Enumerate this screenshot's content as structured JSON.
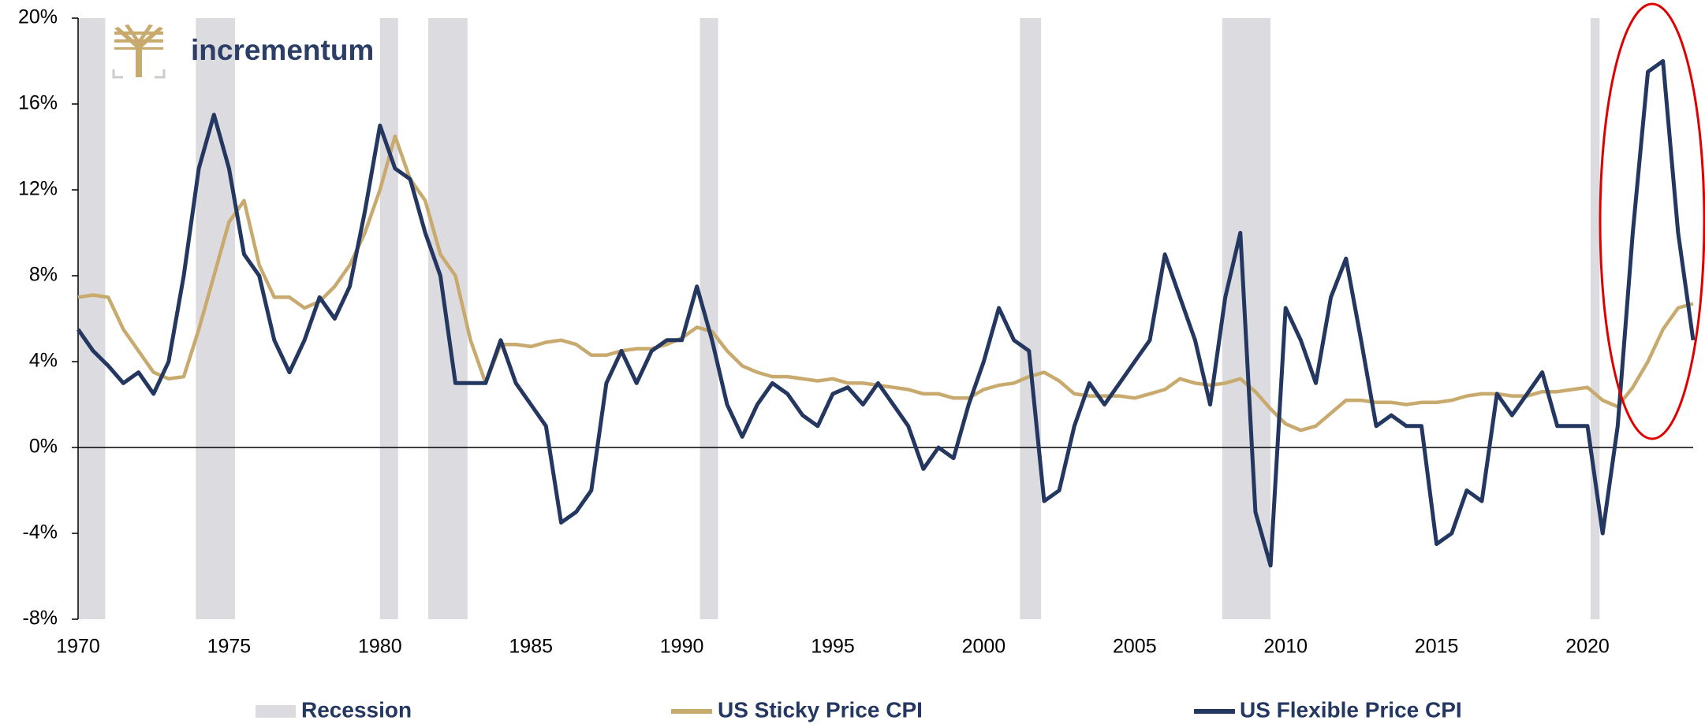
{
  "chart_data": {
    "type": "line",
    "logo_text": "incrementum",
    "x": [
      1970,
      1970.5,
      1971,
      1971.5,
      1972,
      1972.5,
      1973,
      1973.5,
      1974,
      1974.5,
      1975,
      1975.5,
      1976,
      1976.5,
      1977,
      1977.5,
      1978,
      1978.5,
      1979,
      1979.5,
      1980,
      1980.5,
      1981,
      1981.5,
      1982,
      1982.5,
      1983,
      1983.5,
      1984,
      1984.5,
      1985,
      1985.5,
      1986,
      1986.5,
      1987,
      1987.5,
      1988,
      1988.5,
      1989,
      1989.5,
      1990,
      1990.5,
      1991,
      1991.5,
      1992,
      1992.5,
      1993,
      1993.5,
      1994,
      1994.5,
      1995,
      1995.5,
      1996,
      1996.5,
      1997,
      1997.5,
      1998,
      1998.5,
      1999,
      1999.5,
      2000,
      2000.5,
      2001,
      2001.5,
      2002,
      2002.5,
      2003,
      2003.5,
      2004,
      2004.5,
      2005,
      2005.5,
      2006,
      2006.5,
      2007,
      2007.5,
      2008,
      2008.5,
      2009,
      2009.5,
      2010,
      2010.5,
      2011,
      2011.5,
      2012,
      2012.5,
      2013,
      2013.5,
      2014,
      2014.5,
      2015,
      2015.5,
      2016,
      2016.5,
      2017,
      2017.5,
      2018,
      2018.5,
      2019,
      2019.5,
      2020,
      2020.5,
      2021,
      2021.5,
      2022,
      2022.5,
      2023,
      2023.5
    ],
    "series": [
      {
        "name": "US Sticky Price CPI",
        "color": "#c8aa6e",
        "values": [
          7.0,
          7.1,
          7.0,
          5.5,
          4.5,
          3.5,
          3.2,
          3.3,
          5.5,
          8,
          10.5,
          11.5,
          8.5,
          7,
          7,
          6.5,
          6.8,
          7.5,
          8.5,
          10,
          12,
          14.5,
          12.5,
          11.5,
          9,
          8,
          5,
          3,
          4.8,
          4.8,
          4.7,
          4.9,
          5,
          4.8,
          4.3,
          4.3,
          4.5,
          4.6,
          4.6,
          4.8,
          5.1,
          5.6,
          5.4,
          4.5,
          3.8,
          3.5,
          3.3,
          3.3,
          3.2,
          3.1,
          3.2,
          3.0,
          3.0,
          2.9,
          2.8,
          2.7,
          2.5,
          2.5,
          2.3,
          2.3,
          2.7,
          2.9,
          3.0,
          3.3,
          3.5,
          3.1,
          2.5,
          2.4,
          2.4,
          2.4,
          2.3,
          2.5,
          2.7,
          3.2,
          3.0,
          2.9,
          3.0,
          3.2,
          2.6,
          1.8,
          1.1,
          0.8,
          1.0,
          1.6,
          2.2,
          2.2,
          2.1,
          2.1,
          2.0,
          2.1,
          2.1,
          2.2,
          2.4,
          2.5,
          2.5,
          2.4,
          2.4,
          2.6,
          2.6,
          2.7,
          2.8,
          2.2,
          1.9,
          2.8,
          4.0,
          5.5,
          6.5,
          6.7
        ]
      },
      {
        "name": "US Flexible Price CPI",
        "color": "#243760",
        "values": [
          5.5,
          4.5,
          3.8,
          3.0,
          3.5,
          2.5,
          4.0,
          8.0,
          13,
          15.5,
          13,
          9,
          8,
          5,
          3.5,
          5,
          7,
          6,
          7.5,
          11,
          15,
          13,
          12.5,
          10,
          8,
          3,
          3,
          3,
          5,
          3,
          2,
          1,
          -3.5,
          -3,
          -2,
          3,
          4.5,
          3,
          4.5,
          5,
          5,
          7.5,
          5,
          2,
          0.5,
          2,
          3,
          2.5,
          1.5,
          1,
          2.5,
          2.8,
          2,
          3,
          2,
          1,
          -1,
          0,
          -0.5,
          2,
          4,
          6.5,
          5,
          4.5,
          -2.5,
          -2,
          1,
          3,
          2,
          3,
          4,
          5,
          9,
          7,
          5,
          2,
          7,
          10,
          -3,
          -5.5,
          6.5,
          5,
          3,
          7,
          8.8,
          5,
          1,
          1.5,
          1,
          1,
          -4.5,
          -4,
          -2,
          -2.5,
          2.5,
          1.5,
          2.5,
          3.5,
          1,
          1,
          1,
          -4,
          1,
          10,
          17.5,
          18,
          10,
          5
        ]
      }
    ],
    "recession_label": "Recession",
    "recession_color": "#dcdbe0",
    "recessions": [
      [
        1970,
        1970.9
      ],
      [
        1973.9,
        1975.2
      ],
      [
        1980,
        1980.6
      ],
      [
        1981.6,
        1982.9
      ],
      [
        1990.6,
        1991.2
      ],
      [
        2001.2,
        2001.9
      ],
      [
        2007.9,
        2009.5
      ],
      [
        2020.1,
        2020.4
      ]
    ],
    "xlim": [
      1970,
      2023.5
    ],
    "xticks": [
      1970,
      1975,
      1980,
      1985,
      1990,
      1995,
      2000,
      2005,
      2010,
      2015,
      2020
    ],
    "ylim": [
      -8,
      20
    ],
    "yticks": [
      {
        "value": -8,
        "label": "-8%"
      },
      {
        "value": -4,
        "label": "-4%"
      },
      {
        "value": 0,
        "label": "0%"
      },
      {
        "value": 4,
        "label": "4%"
      },
      {
        "value": 8,
        "label": "8%"
      },
      {
        "value": 12,
        "label": "12%"
      },
      {
        "value": 16,
        "label": "16%"
      },
      {
        "value": 20,
        "label": "20%"
      }
    ]
  }
}
